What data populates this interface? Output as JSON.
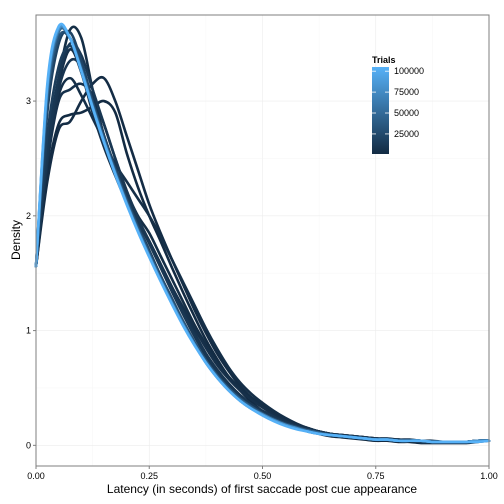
{
  "chart_data": {
    "type": "line",
    "title": "",
    "xlabel": "Latency (in seconds) of first saccade post cue appearance",
    "ylabel": "Density",
    "xlim": [
      0,
      1
    ],
    "ylim": [
      -0.18,
      3.75
    ],
    "x_ticks": [
      0,
      0.25,
      0.5,
      0.75,
      1
    ],
    "x_tick_labels": [
      "0.00",
      "0.25",
      "0.50",
      "0.75",
      "1.00"
    ],
    "y_ticks": [
      0,
      1,
      2,
      3
    ],
    "y_tick_labels": [
      "0",
      "1",
      "2",
      "3"
    ],
    "grid": true,
    "legend": {
      "title": "Trials",
      "placement": "top-right",
      "color_low": "#132B43",
      "color_high": "#56B1F7",
      "range": [
        1000,
        105000
      ],
      "breaks": [
        100000,
        75000,
        50000,
        25000
      ],
      "break_labels": [
        "100000",
        "75000",
        "50000",
        "25000"
      ]
    },
    "x": [
      0,
      0.025,
      0.05,
      0.075,
      0.1,
      0.125,
      0.15,
      0.175,
      0.2,
      0.225,
      0.25,
      0.275,
      0.3,
      0.325,
      0.35,
      0.375,
      0.4,
      0.425,
      0.45,
      0.475,
      0.5,
      0.525,
      0.55,
      0.575,
      0.6,
      0.625,
      0.65,
      0.675,
      0.7,
      0.725,
      0.75,
      0.775,
      0.8,
      0.825,
      0.85,
      0.875,
      0.9,
      0.925,
      0.95,
      0.975,
      1
    ],
    "series": [
      {
        "trials": 1000,
        "values": [
          1.56,
          2.35,
          2.8,
          2.88,
          2.9,
          2.95,
          3.0,
          2.9,
          2.55,
          2.25,
          2.0,
          1.78,
          1.55,
          1.33,
          1.12,
          0.92,
          0.75,
          0.6,
          0.48,
          0.38,
          0.3,
          0.26,
          0.22,
          0.18,
          0.14,
          0.1,
          0.08,
          0.07,
          0.06,
          0.05,
          0.04,
          0.04,
          0.03,
          0.03,
          0.02,
          0.02,
          0.02,
          0.02,
          0.02,
          0.03,
          0.04
        ]
      },
      {
        "trials": 2000,
        "values": [
          1.56,
          2.3,
          2.75,
          2.82,
          3.0,
          3.15,
          3.2,
          3.0,
          2.7,
          2.4,
          2.1,
          1.85,
          1.62,
          1.4,
          1.18,
          0.98,
          0.8,
          0.65,
          0.52,
          0.42,
          0.34,
          0.28,
          0.22,
          0.18,
          0.15,
          0.12,
          0.1,
          0.08,
          0.07,
          0.06,
          0.05,
          0.05,
          0.04,
          0.04,
          0.03,
          0.03,
          0.03,
          0.03,
          0.03,
          0.04,
          0.04
        ]
      },
      {
        "trials": 3000,
        "values": [
          1.56,
          2.6,
          3.2,
          3.62,
          3.55,
          3.1,
          2.7,
          2.4,
          2.2,
          2.0,
          1.85,
          1.65,
          1.45,
          1.25,
          1.05,
          0.88,
          0.72,
          0.6,
          0.5,
          0.42,
          0.35,
          0.28,
          0.22,
          0.18,
          0.15,
          0.12,
          0.1,
          0.08,
          0.07,
          0.06,
          0.05,
          0.05,
          0.04,
          0.04,
          0.04,
          0.03,
          0.03,
          0.03,
          0.03,
          0.04,
          0.04
        ]
      },
      {
        "trials": 4000,
        "values": [
          1.56,
          2.5,
          3.05,
          3.2,
          3.05,
          2.85,
          2.65,
          2.45,
          2.3,
          2.15,
          2.0,
          1.82,
          1.62,
          1.42,
          1.22,
          1.02,
          0.84,
          0.68,
          0.55,
          0.45,
          0.37,
          0.3,
          0.24,
          0.19,
          0.15,
          0.12,
          0.1,
          0.09,
          0.08,
          0.07,
          0.06,
          0.05,
          0.04,
          0.04,
          0.03,
          0.03,
          0.03,
          0.03,
          0.03,
          0.04,
          0.04
        ]
      },
      {
        "trials": 5000,
        "values": [
          1.56,
          2.55,
          3.15,
          3.45,
          3.25,
          2.9,
          2.6,
          2.35,
          2.12,
          1.95,
          1.78,
          1.58,
          1.38,
          1.2,
          1.02,
          0.85,
          0.7,
          0.58,
          0.48,
          0.4,
          0.33,
          0.27,
          0.22,
          0.18,
          0.15,
          0.12,
          0.1,
          0.09,
          0.08,
          0.07,
          0.06,
          0.05,
          0.05,
          0.04,
          0.04,
          0.03,
          0.03,
          0.03,
          0.03,
          0.04,
          0.04
        ]
      },
      {
        "trials": 6000,
        "values": [
          1.56,
          2.45,
          3.0,
          3.1,
          3.15,
          3.05,
          2.8,
          2.5,
          2.22,
          1.98,
          1.78,
          1.58,
          1.38,
          1.18,
          0.98,
          0.8,
          0.65,
          0.52,
          0.42,
          0.34,
          0.28,
          0.23,
          0.19,
          0.16,
          0.13,
          0.11,
          0.09,
          0.08,
          0.07,
          0.06,
          0.05,
          0.05,
          0.04,
          0.04,
          0.03,
          0.03,
          0.03,
          0.03,
          0.03,
          0.04,
          0.04
        ]
      },
      {
        "trials": 8000,
        "values": [
          1.56,
          2.5,
          3.1,
          3.35,
          3.3,
          3.0,
          2.7,
          2.42,
          2.18,
          1.96,
          1.76,
          1.56,
          1.36,
          1.16,
          0.97,
          0.8,
          0.66,
          0.54,
          0.44,
          0.36,
          0.3,
          0.25,
          0.21,
          0.17,
          0.14,
          0.12,
          0.1,
          0.09,
          0.08,
          0.07,
          0.06,
          0.05,
          0.05,
          0.04,
          0.04,
          0.03,
          0.03,
          0.03,
          0.03,
          0.04,
          0.04
        ]
      },
      {
        "trials": 10000,
        "values": [
          1.56,
          2.55,
          3.2,
          3.5,
          3.4,
          3.1,
          2.8,
          2.5,
          2.22,
          1.98,
          1.76,
          1.55,
          1.34,
          1.14,
          0.95,
          0.78,
          0.64,
          0.52,
          0.43,
          0.36,
          0.3,
          0.25,
          0.2,
          0.17,
          0.14,
          0.12,
          0.1,
          0.09,
          0.08,
          0.07,
          0.06,
          0.06,
          0.05,
          0.05,
          0.04,
          0.04,
          0.03,
          0.03,
          0.03,
          0.04,
          0.04
        ]
      },
      {
        "trials": 15000,
        "values": [
          1.56,
          2.7,
          3.3,
          3.48,
          3.3,
          3.0,
          2.7,
          2.42,
          2.16,
          1.92,
          1.7,
          1.48,
          1.28,
          1.08,
          0.9,
          0.74,
          0.6,
          0.49,
          0.4,
          0.33,
          0.27,
          0.22,
          0.18,
          0.15,
          0.13,
          0.11,
          0.09,
          0.08,
          0.07,
          0.06,
          0.05,
          0.05,
          0.04,
          0.04,
          0.04,
          0.03,
          0.03,
          0.03,
          0.03,
          0.04,
          0.04
        ]
      },
      {
        "trials": 20000,
        "values": [
          1.56,
          2.9,
          3.5,
          3.6,
          3.35,
          3.0,
          2.68,
          2.38,
          2.12,
          1.88,
          1.66,
          1.46,
          1.26,
          1.07,
          0.89,
          0.73,
          0.6,
          0.49,
          0.4,
          0.33,
          0.27,
          0.22,
          0.18,
          0.15,
          0.13,
          0.11,
          0.09,
          0.08,
          0.07,
          0.06,
          0.05,
          0.05,
          0.04,
          0.04,
          0.03,
          0.03,
          0.03,
          0.03,
          0.03,
          0.04,
          0.04
        ]
      },
      {
        "trials": 30000,
        "values": [
          1.56,
          3.0,
          3.55,
          3.55,
          3.3,
          2.98,
          2.68,
          2.4,
          2.14,
          1.9,
          1.68,
          1.47,
          1.27,
          1.08,
          0.9,
          0.74,
          0.61,
          0.5,
          0.41,
          0.34,
          0.28,
          0.23,
          0.19,
          0.16,
          0.13,
          0.11,
          0.09,
          0.08,
          0.07,
          0.06,
          0.05,
          0.05,
          0.04,
          0.04,
          0.04,
          0.03,
          0.03,
          0.03,
          0.03,
          0.04,
          0.04
        ]
      },
      {
        "trials": 45000,
        "values": [
          1.56,
          3.05,
          3.6,
          3.55,
          3.28,
          2.96,
          2.66,
          2.38,
          2.12,
          1.88,
          1.66,
          1.45,
          1.25,
          1.06,
          0.88,
          0.73,
          0.6,
          0.49,
          0.4,
          0.33,
          0.27,
          0.22,
          0.18,
          0.15,
          0.13,
          0.11,
          0.09,
          0.08,
          0.07,
          0.06,
          0.05,
          0.05,
          0.04,
          0.04,
          0.04,
          0.03,
          0.03,
          0.03,
          0.03,
          0.04,
          0.04
        ]
      },
      {
        "trials": 60000,
        "values": [
          1.56,
          3.1,
          3.62,
          3.55,
          3.27,
          2.95,
          2.65,
          2.37,
          2.11,
          1.87,
          1.65,
          1.44,
          1.24,
          1.05,
          0.88,
          0.72,
          0.59,
          0.48,
          0.39,
          0.32,
          0.27,
          0.22,
          0.18,
          0.15,
          0.12,
          0.1,
          0.09,
          0.08,
          0.07,
          0.06,
          0.05,
          0.05,
          0.04,
          0.04,
          0.04,
          0.03,
          0.03,
          0.03,
          0.03,
          0.04,
          0.04
        ]
      },
      {
        "trials": 80000,
        "values": [
          1.56,
          3.12,
          3.63,
          3.55,
          3.27,
          2.95,
          2.65,
          2.37,
          2.11,
          1.87,
          1.65,
          1.44,
          1.24,
          1.05,
          0.88,
          0.72,
          0.59,
          0.48,
          0.39,
          0.32,
          0.27,
          0.22,
          0.18,
          0.15,
          0.12,
          0.1,
          0.09,
          0.08,
          0.07,
          0.06,
          0.05,
          0.05,
          0.04,
          0.04,
          0.04,
          0.03,
          0.03,
          0.03,
          0.03,
          0.04,
          0.04
        ]
      },
      {
        "trials": 105000,
        "values": [
          1.56,
          3.15,
          3.65,
          3.55,
          3.26,
          2.94,
          2.64,
          2.36,
          2.1,
          1.86,
          1.64,
          1.43,
          1.23,
          1.04,
          0.87,
          0.72,
          0.59,
          0.48,
          0.39,
          0.32,
          0.26,
          0.21,
          0.17,
          0.14,
          0.12,
          0.1,
          0.09,
          0.08,
          0.07,
          0.06,
          0.05,
          0.05,
          0.04,
          0.04,
          0.04,
          0.03,
          0.03,
          0.03,
          0.03,
          0.03,
          0.04
        ]
      }
    ]
  }
}
